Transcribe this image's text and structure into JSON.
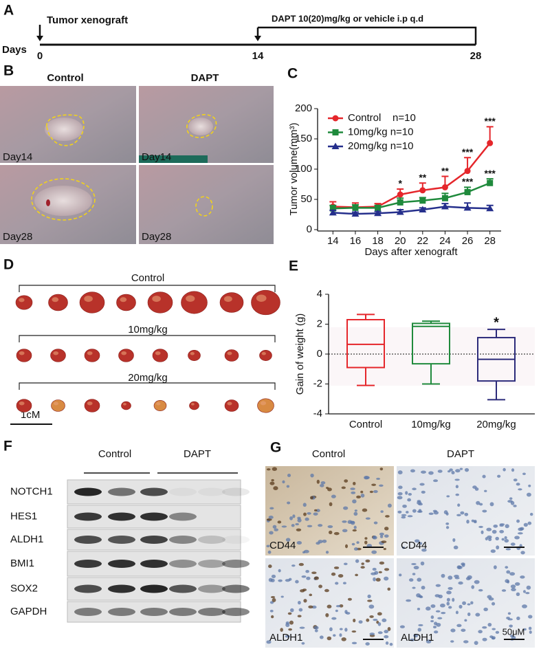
{
  "panels": [
    "A",
    "B",
    "C",
    "D",
    "E",
    "F",
    "G"
  ],
  "timeline": {
    "event_start": "Tumor xenograft",
    "treatment": "DAPT 10(20)mg/kg or vehicle i.p q.d",
    "axis_label": "Days",
    "ticks": [
      0,
      14,
      28
    ],
    "xlim": [
      0,
      28
    ]
  },
  "photos": {
    "columns": [
      "Control",
      "DAPT"
    ],
    "labels": [
      [
        "Day14",
        "Day14"
      ],
      [
        "Day28",
        "Day28"
      ]
    ]
  },
  "tumors": {
    "groups": [
      "Control",
      "10mg/kg",
      "20mg/kg"
    ],
    "scale_bar": "1cM"
  },
  "blot": {
    "groups": [
      "Control",
      "DAPT"
    ],
    "proteins": [
      "NOTCH1",
      "HES1",
      "ALDH1",
      "BMI1",
      "SOX2",
      "GAPDH"
    ]
  },
  "ihc": {
    "columns": [
      "Control",
      "DAPT"
    ],
    "labels": [
      [
        "CD44",
        "CD44"
      ],
      [
        "ALDH1",
        "ALDH1"
      ]
    ],
    "scale_bar": "50μM"
  },
  "chart_data": [
    {
      "type": "line",
      "x_label": "Days after xenograft",
      "y_label": "Tumor volume(mm³)",
      "x": [
        14,
        16,
        18,
        20,
        22,
        24,
        26,
        28
      ],
      "xlim": [
        13,
        29
      ],
      "xticks": [
        14,
        16,
        18,
        20,
        22,
        24,
        26,
        28
      ],
      "ylim": [
        0,
        200
      ],
      "yticks": [
        0,
        50,
        100,
        150,
        200
      ],
      "series": [
        {
          "name": "Control    n=10",
          "color": "#e5262b",
          "marker": "circle",
          "values": [
            38,
            37,
            38,
            58,
            65,
            70,
            97,
            143
          ],
          "errors": [
            8,
            7,
            5,
            9,
            12,
            18,
            22,
            27
          ],
          "significance": [
            null,
            null,
            null,
            "*",
            "**",
            "**",
            "***",
            "***"
          ]
        },
        {
          "name": "10mg/kg n=10",
          "color": "#1f8a3c",
          "marker": "square",
          "values": [
            35,
            36,
            36,
            45,
            48,
            52,
            62,
            77
          ],
          "errors": [
            5,
            5,
            4,
            7,
            5,
            8,
            8,
            7
          ],
          "significance": [
            null,
            null,
            null,
            null,
            null,
            null,
            "***",
            "***"
          ]
        },
        {
          "name": "20mg/kg n=10",
          "color": "#252f8c",
          "marker": "triangle",
          "values": [
            28,
            26,
            27,
            29,
            33,
            38,
            36,
            35
          ],
          "errors": [
            4,
            3,
            3,
            4,
            3,
            5,
            8,
            5
          ],
          "significance": [
            null,
            null,
            null,
            null,
            null,
            null,
            null,
            null
          ]
        }
      ]
    },
    {
      "type": "box",
      "y_label": "Gain of weight (g)",
      "categories": [
        "Control",
        "10mg/kg",
        "20mg/kg"
      ],
      "colors": [
        "#e5262b",
        "#1f8a3c",
        "#2b2a7a"
      ],
      "stats": [
        {
          "min": -2.1,
          "q1": -0.9,
          "median": 0.65,
          "q3": 2.3,
          "max": 2.65
        },
        {
          "min": -2.0,
          "q1": -0.65,
          "median": 1.85,
          "q3": 2.05,
          "max": 2.2
        },
        {
          "min": -3.05,
          "q1": -1.8,
          "median": -0.35,
          "q3": 1.1,
          "max": 1.65
        }
      ],
      "significance": [
        null,
        null,
        "*"
      ],
      "ylim": [
        -4,
        4
      ],
      "yticks": [
        -4,
        -2,
        0,
        2,
        4
      ],
      "zero_line": true
    }
  ]
}
